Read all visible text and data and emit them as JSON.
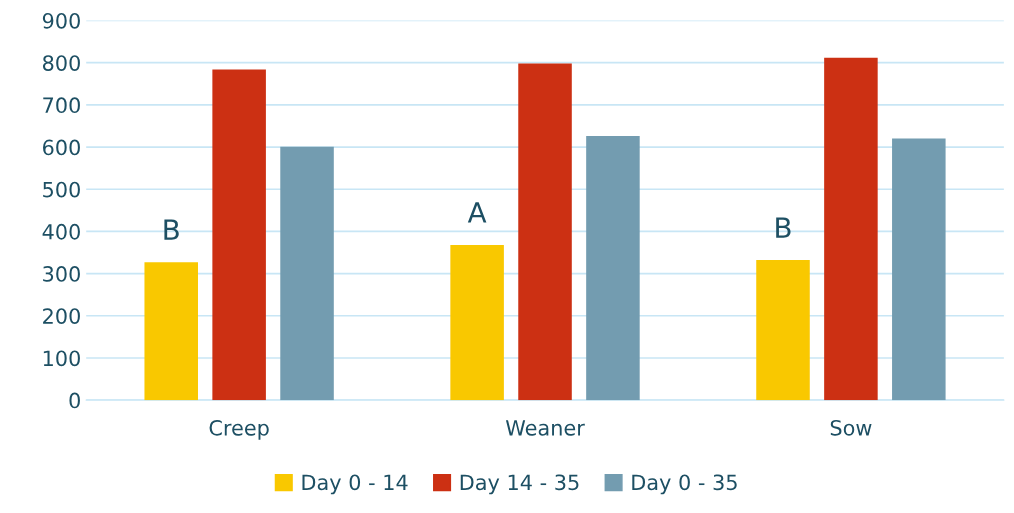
{
  "chart_data": {
    "type": "bar",
    "categories": [
      "Creep",
      "Weaner",
      "Sow"
    ],
    "series": [
      {
        "name": "Day 0 - 14",
        "color": "#f9c800",
        "values": [
          327,
          368,
          332
        ]
      },
      {
        "name": "Day 14 - 35",
        "color": "#cc3013",
        "values": [
          784,
          798,
          812
        ]
      },
      {
        "name": "Day 0 - 35",
        "color": "#739cb0",
        "values": [
          601,
          626,
          620
        ]
      }
    ],
    "ylim": [
      0,
      900
    ],
    "yticks": [
      0,
      100,
      200,
      300,
      400,
      500,
      600,
      700,
      800,
      900
    ],
    "grid": "y",
    "legend": "bottom",
    "annotations": [
      "B",
      "A",
      "B"
    ]
  }
}
